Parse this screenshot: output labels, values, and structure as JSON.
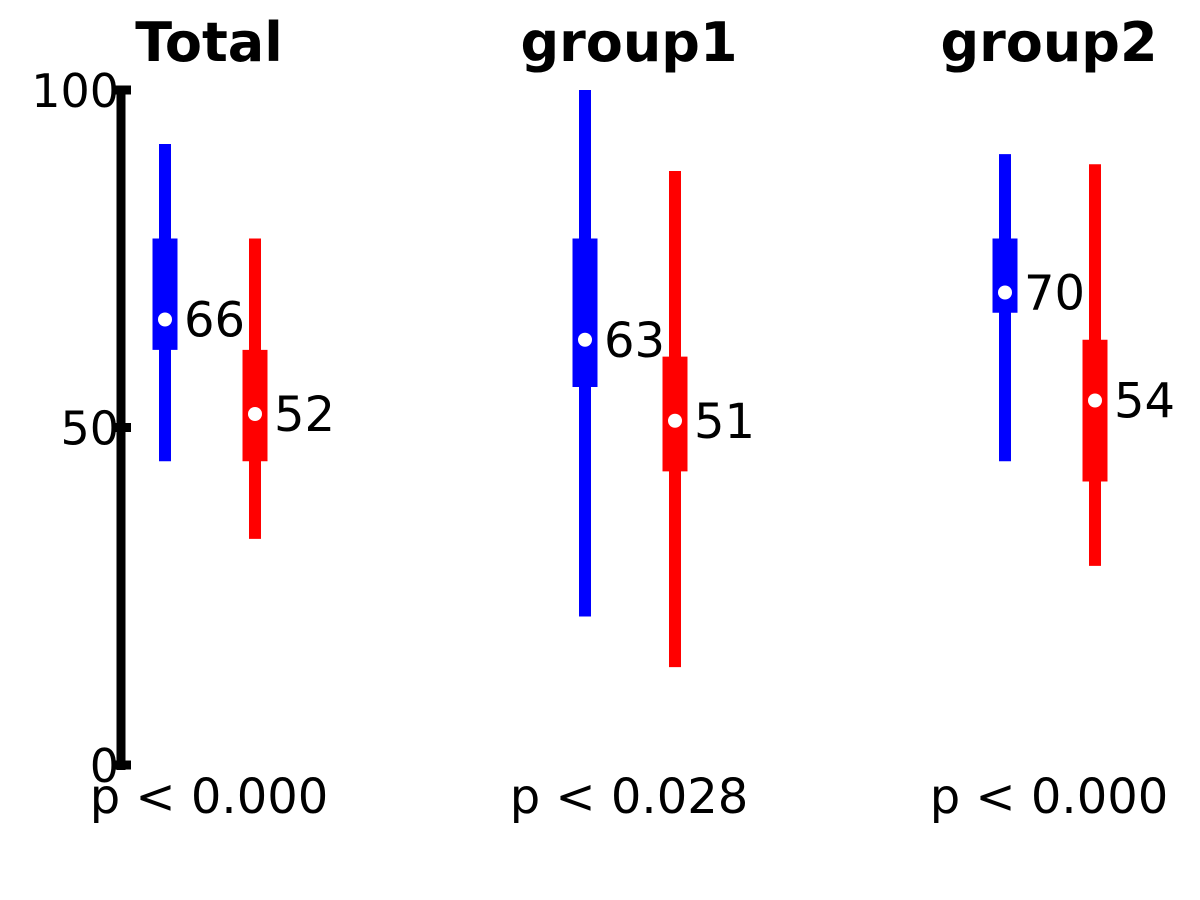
{
  "chart_data": {
    "type": "interval",
    "ylim": [
      0,
      100
    ],
    "yticks": [
      {
        "value": 0,
        "label": "0"
      },
      {
        "value": 50,
        "label": "50"
      },
      {
        "value": 100,
        "label": "100"
      }
    ],
    "panels": [
      {
        "title": "Total",
        "p_label": "p < 0.000",
        "series": [
          {
            "color": "#0000ff",
            "low": 45,
            "q1": 61.5,
            "mid": 66,
            "q3": 78,
            "high": 92,
            "label": "66"
          },
          {
            "color": "#ff0000",
            "low": 33.5,
            "q1": 45,
            "mid": 52,
            "q3": 61.5,
            "high": 78,
            "label": "52"
          }
        ]
      },
      {
        "title": "group1",
        "p_label": "p < 0.028",
        "series": [
          {
            "color": "#0000ff",
            "low": 22,
            "q1": 56,
            "mid": 63,
            "q3": 78,
            "high": 100,
            "label": "63"
          },
          {
            "color": "#ff0000",
            "low": 14.5,
            "q1": 43.5,
            "mid": 51,
            "q3": 60.5,
            "high": 88,
            "label": "51"
          }
        ]
      },
      {
        "title": "group2",
        "p_label": "p < 0.000",
        "series": [
          {
            "color": "#0000ff",
            "low": 45,
            "q1": 67,
            "mid": 70,
            "q3": 78,
            "high": 90.5,
            "label": "70"
          },
          {
            "color": "#ff0000",
            "low": 29.5,
            "q1": 42,
            "mid": 54,
            "q3": 63,
            "high": 89,
            "label": "54"
          }
        ]
      }
    ]
  }
}
